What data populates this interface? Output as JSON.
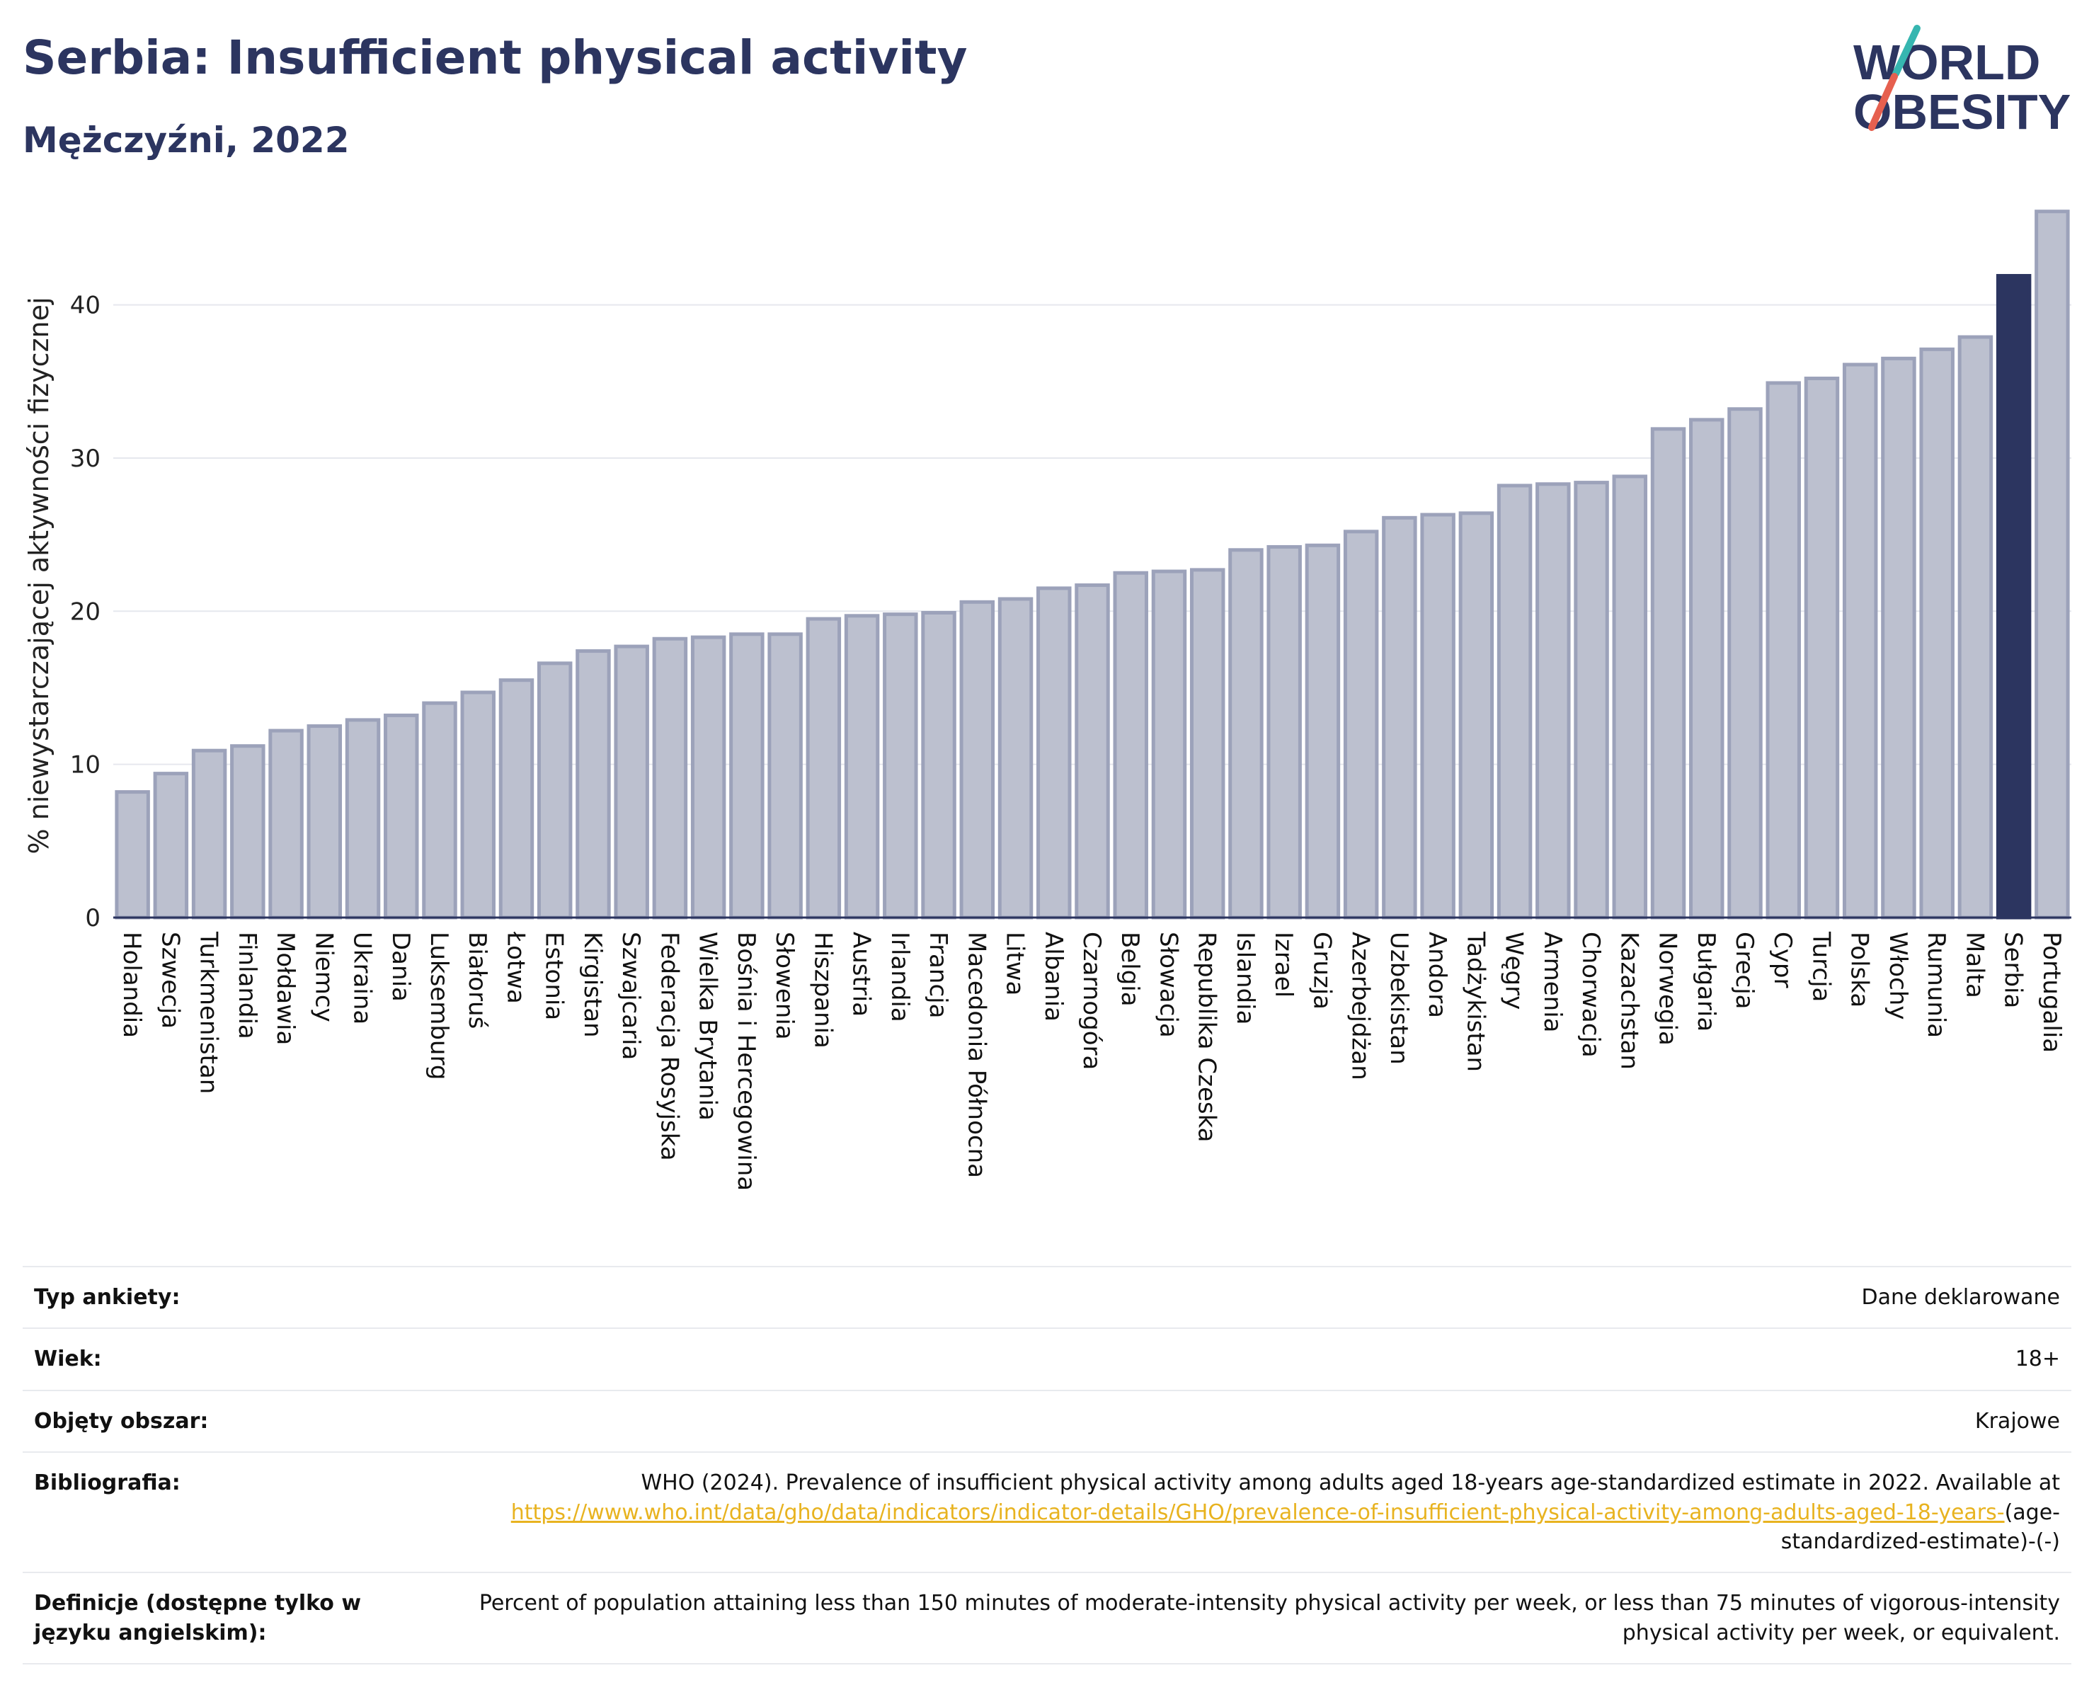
{
  "header": {
    "title": "Serbia: Insufficient physical activity",
    "subtitle": "Mężczyźni, 2022"
  },
  "logo": {
    "line1": "WORLD",
    "line2": "OBESITY"
  },
  "colors": {
    "bar": "#bcc0cf",
    "bar_stroke": "#9ca2ba",
    "highlight": "#2c3560",
    "text": "#2c3560",
    "link": "#e8b320",
    "logo_teal": "#36b6b0",
    "logo_red": "#e6604f"
  },
  "chart_data": {
    "type": "bar",
    "title": "Serbia: Insufficient physical activity",
    "subtitle": "Mężczyźni, 2022",
    "xlabel": "",
    "ylabel": "% niewystarczającej aktywności fizycznej",
    "ylim": [
      0,
      46.5
    ],
    "yticks": [
      0,
      10,
      20,
      30,
      40
    ],
    "grid": true,
    "highlight": "Serbia",
    "categories": [
      "Holandia",
      "Szwecja",
      "Turkmenistan",
      "Finlandia",
      "Mołdawia",
      "Niemcy",
      "Ukraina",
      "Dania",
      "Luksemburg",
      "Białoruś",
      "Łotwa",
      "Estonia",
      "Kirgistan",
      "Szwajcaria",
      "Federacja Rosyjska",
      "Wielka Brytania",
      "Bośnia i Hercegowina",
      "Słowenia",
      "Hiszpania",
      "Austria",
      "Irlandia",
      "Francja",
      "Macedonia Północna",
      "Litwa",
      "Albania",
      "Czarnogóra",
      "Belgia",
      "Słowacja",
      "Republika Czeska",
      "Islandia",
      "Izrael",
      "Gruzja",
      "Azerbejdżan",
      "Uzbekistan",
      "Andora",
      "Tadżykistan",
      "Węgry",
      "Armenia",
      "Chorwacja",
      "Kazachstan",
      "Norwegia",
      "Bułgaria",
      "Grecja",
      "Cypr",
      "Turcja",
      "Polska",
      "Włochy",
      "Rumunia",
      "Malta",
      "Serbia",
      "Portugalia"
    ],
    "values": [
      8.2,
      9.4,
      10.9,
      11.2,
      12.2,
      12.5,
      12.9,
      13.2,
      14.0,
      14.7,
      15.5,
      16.6,
      17.4,
      17.7,
      18.2,
      18.3,
      18.5,
      18.5,
      19.5,
      19.7,
      19.8,
      19.9,
      20.6,
      20.8,
      21.5,
      21.7,
      22.5,
      22.6,
      22.7,
      24.0,
      24.2,
      24.3,
      25.2,
      26.1,
      26.3,
      26.4,
      28.2,
      28.3,
      28.4,
      28.8,
      31.9,
      32.5,
      33.2,
      34.9,
      35.2,
      36.1,
      36.5,
      37.1,
      37.9,
      41.9,
      46.1
    ]
  },
  "info": [
    {
      "label": "Typ ankiety:",
      "value": "Dane deklarowane"
    },
    {
      "label": "Wiek:",
      "value": "18+"
    },
    {
      "label": "Objęty obszar:",
      "value": "Krajowe"
    },
    {
      "label": "Bibliografia:",
      "value_before": "WHO (2024). Prevalence of insufficient physical activity among adults aged 18-years age-standardized estimate in 2022. Available at ",
      "value_link": "https://www.who.int/data/gho/data/indicators/indicator-details/GHO/prevalence-of-insufficient-physical-activity-among-adults-aged-18-years-",
      "value_after": "(age-standardized-estimate)-(-)"
    },
    {
      "label": "Definicje (dostępne tylko w języku angielskim):",
      "value": "Percent of population attaining less than 150 minutes of moderate-intensity physical activity per week, or less than 75 minutes of vigorous-intensity physical activity per week, or equivalent."
    }
  ]
}
